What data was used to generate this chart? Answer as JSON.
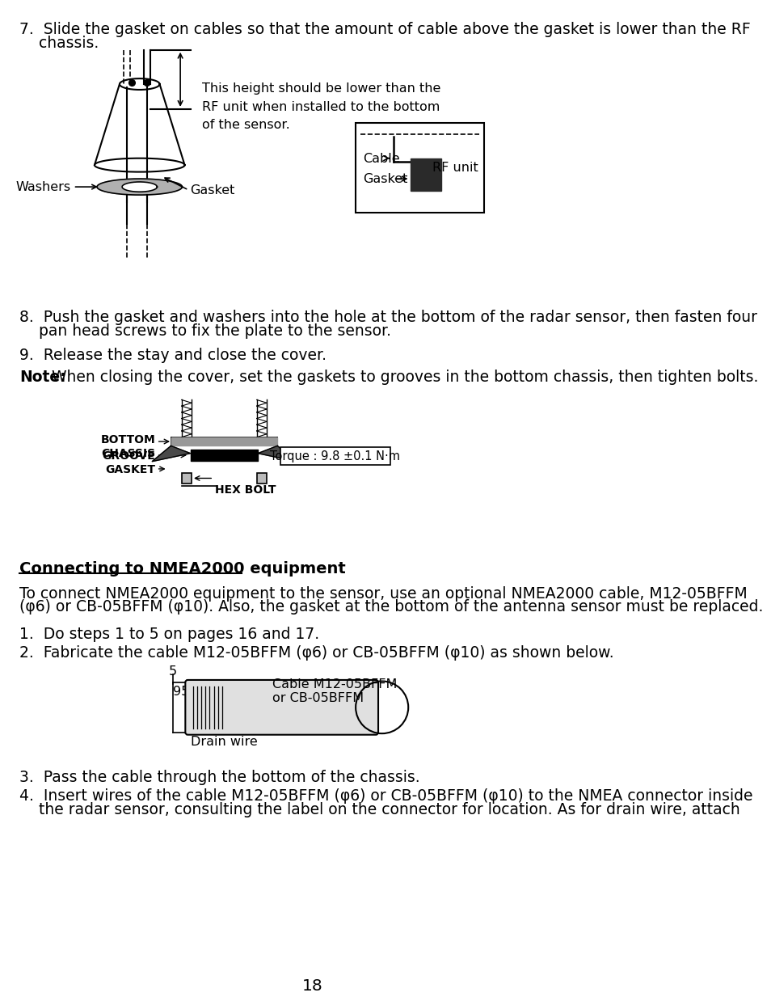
{
  "bg_color": "#ffffff",
  "page_number": "18",
  "step7_line1": "7.  Slide the gasket on cables so that the amount of cable above the gasket is lower than the RF",
  "step7_line2": "    chassis.",
  "step8_line1": "8.  Push the gasket and washers into the hole at the bottom of the radar sensor, then fasten four",
  "step8_line2": "    pan head screws to fix the plate to the sensor.",
  "step9_text": "9.  Release the stay and close the cover.",
  "note_bold": "Note:",
  "note_text": " When closing the cover, set the gaskets to grooves in the bottom chassis, then tighten bolts.",
  "connecting_title": "Connecting to NMEA2000 equipment",
  "connecting_para1": "To connect NMEA2000 equipment to the sensor, use an optional NMEA2000 cable, M12-05BFFM",
  "connecting_para2": "(φ6) or CB-05BFFM (φ10). Also, the gasket at the bottom of the antenna sensor must be replaced.",
  "step1_text": "1.  Do steps 1 to 5 on pages 16 and 17.",
  "step2_text": "2.  Fabricate the cable M12-05BFFM (φ6) or CB-05BFFM (φ10) as shown below.",
  "step3_text": "3.  Pass the cable through the bottom of the chassis.",
  "step4_line1": "4.  Insert wires of the cable M12-05BFFM (φ6) or CB-05BFFM (φ10) to the NMEA connector inside",
  "step4_line2": "    the radar sensor, consulting the label on the connector for location. As for drain wire, attach",
  "height_note": "This height should be lower than the\nRF unit when installed to the bottom\nof the sensor.",
  "cable_label": "Cable",
  "gasket_label": "Gasket",
  "rf_unit_label": "RF unit",
  "washers_label": "Washers",
  "gasket_label2": "Gasket",
  "bottom_chassis": "BOTTOM\nCHASSIS",
  "groove_label": "GROOVE",
  "gasket_label3": "GASKET",
  "hex_bolt_label": "HEX BOLT",
  "torque_label": "Torque : 9.8 ±0.1 N·m",
  "dim_5": "5",
  "dim_95": "95",
  "cable_m12_label": "Cable M12-05BFFM\nor CB-05BFFM",
  "drain_wire_label": "Drain wire"
}
